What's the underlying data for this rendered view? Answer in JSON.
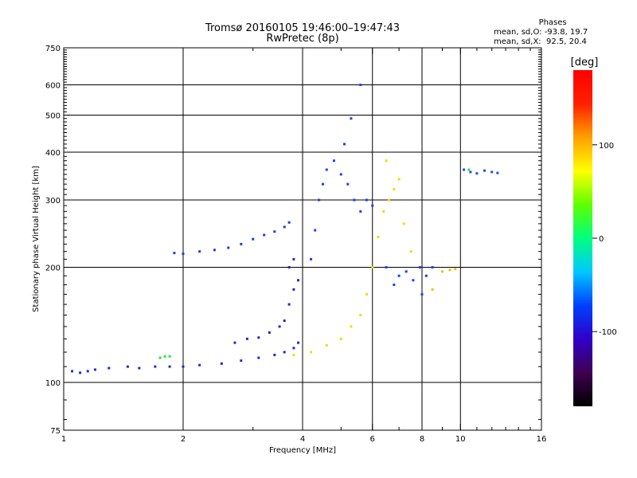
{
  "title_line1": "Tromsø 20160105 19:46:00–19:47:43",
  "title_line2": "RwPretec (8p)",
  "phase_box": {
    "heading": "Phases",
    "line_o": "mean, sd,O: -93.8, 19.7",
    "line_x": "mean, sd,X:  92.5, 20.4"
  },
  "chart_data": {
    "type": "scatter",
    "xlabel": "Frequency [MHz]",
    "ylabel": "Stationary phase Virtual Height [km]",
    "x_scale": "log",
    "y_scale": "log",
    "xlim": [
      1,
      16
    ],
    "ylim": [
      75,
      750
    ],
    "x_ticks": [
      1,
      2,
      4,
      6,
      8,
      10,
      16
    ],
    "x_minor_ticks": [
      3,
      5,
      7,
      9,
      11,
      12,
      13,
      14,
      15
    ],
    "x_gridlines": [
      2,
      4,
      6,
      8,
      10
    ],
    "y_ticks": [
      75,
      100,
      200,
      300,
      400,
      500,
      600,
      750
    ],
    "y_gridlines": [
      100,
      200,
      300,
      400,
      500,
      600
    ],
    "colorbar": {
      "label": "[deg]",
      "range": [
        -180,
        180
      ],
      "ticks": [
        -100,
        0,
        100
      ],
      "colormap": [
        "#000000",
        "#400050",
        "#3000c8",
        "#0040ff",
        "#00c8ff",
        "#00ff80",
        "#60ff00",
        "#ffff00",
        "#ffa000",
        "#ff2000",
        "#ff0000"
      ]
    },
    "series": [
      {
        "color": "#1a2fd0",
        "points": [
          [
            1.05,
            107
          ],
          [
            1.1,
            106
          ],
          [
            1.15,
            107
          ],
          [
            1.2,
            108
          ],
          [
            1.3,
            109
          ],
          [
            1.45,
            110
          ],
          [
            1.55,
            109
          ],
          [
            1.7,
            110
          ],
          [
            1.85,
            110
          ],
          [
            2.0,
            110
          ],
          [
            2.2,
            111
          ],
          [
            2.5,
            112
          ],
          [
            2.8,
            114
          ],
          [
            3.1,
            116
          ],
          [
            3.4,
            118
          ],
          [
            3.6,
            120
          ],
          [
            3.8,
            123
          ],
          [
            3.9,
            127
          ]
        ]
      },
      {
        "color": "#3422c0",
        "points": [
          [
            2.7,
            127
          ],
          [
            2.9,
            130
          ],
          [
            3.1,
            131
          ],
          [
            3.3,
            135
          ],
          [
            3.5,
            140
          ],
          [
            3.6,
            145
          ],
          [
            3.7,
            160
          ],
          [
            3.8,
            175
          ],
          [
            3.9,
            185
          ],
          [
            3.7,
            200
          ],
          [
            3.8,
            210
          ]
        ]
      },
      {
        "color": "#1e3fe0",
        "points": [
          [
            1.9,
            218
          ],
          [
            2.0,
            217
          ],
          [
            2.2,
            220
          ],
          [
            2.4,
            222
          ],
          [
            2.6,
            225
          ],
          [
            2.8,
            230
          ],
          [
            3.0,
            237
          ],
          [
            3.2,
            243
          ],
          [
            3.4,
            248
          ],
          [
            3.6,
            255
          ],
          [
            3.7,
            262
          ]
        ]
      },
      {
        "color": "#2040e8",
        "points": [
          [
            4.2,
            210
          ],
          [
            4.3,
            250
          ],
          [
            4.4,
            300
          ],
          [
            4.5,
            330
          ],
          [
            4.6,
            360
          ],
          [
            4.8,
            380
          ],
          [
            5.0,
            350
          ],
          [
            5.2,
            330
          ],
          [
            5.4,
            300
          ],
          [
            5.6,
            280
          ],
          [
            5.8,
            300
          ],
          [
            6.0,
            290
          ],
          [
            5.1,
            420
          ],
          [
            5.3,
            490
          ],
          [
            5.6,
            600
          ]
        ]
      },
      {
        "color": "#e8e000",
        "points": [
          [
            3.8,
            118
          ],
          [
            4.2,
            120
          ],
          [
            4.6,
            125
          ],
          [
            5.0,
            130
          ],
          [
            5.3,
            140
          ],
          [
            5.6,
            150
          ],
          [
            5.8,
            170
          ],
          [
            6.0,
            200
          ],
          [
            6.2,
            240
          ],
          [
            6.4,
            280
          ],
          [
            6.6,
            300
          ],
          [
            6.8,
            320
          ],
          [
            7.0,
            340
          ],
          [
            6.5,
            380
          ],
          [
            7.2,
            260
          ],
          [
            7.5,
            220
          ]
        ]
      },
      {
        "color": "#1a40ff",
        "points": [
          [
            6.5,
            200
          ],
          [
            6.8,
            180
          ],
          [
            7.0,
            190
          ],
          [
            7.3,
            195
          ],
          [
            7.6,
            185
          ],
          [
            7.9,
            200
          ],
          [
            8.0,
            170
          ],
          [
            8.2,
            190
          ],
          [
            8.5,
            200
          ]
        ]
      },
      {
        "color": "#f0c000",
        "points": [
          [
            8.5,
            175
          ],
          [
            9.0,
            195
          ],
          [
            9.4,
            197
          ],
          [
            9.7,
            198
          ]
        ]
      },
      {
        "color": "#2050e0",
        "points": [
          [
            10.2,
            360
          ],
          [
            10.6,
            355
          ],
          [
            11.0,
            352
          ],
          [
            11.5,
            358
          ],
          [
            12.0,
            355
          ],
          [
            12.4,
            353
          ]
        ]
      },
      {
        "color": "#30e040",
        "points": [
          [
            1.75,
            116
          ],
          [
            1.8,
            117
          ],
          [
            1.85,
            117
          ],
          [
            10.5,
            360
          ]
        ]
      }
    ]
  }
}
